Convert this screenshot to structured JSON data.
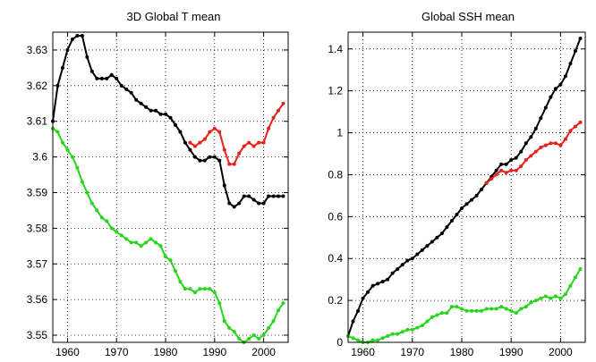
{
  "chart_data": [
    {
      "type": "line",
      "title": "3D Global T mean",
      "xlabel": "",
      "ylabel": "",
      "xlim": [
        1957,
        2005
      ],
      "ylim": [
        3.548,
        3.635
      ],
      "xticks": [
        1960,
        1970,
        1980,
        1990,
        2000
      ],
      "xtick_labels": [
        "1960",
        "1970",
        "1980",
        "1990",
        "2000"
      ],
      "yticks": [
        3.55,
        3.56,
        3.57,
        3.58,
        3.59,
        3.6,
        3.61,
        3.62,
        3.63
      ],
      "ytick_labels": [
        "3.55",
        "3.56",
        "3.57",
        "3.58",
        "3.59",
        "3.6",
        "3.61",
        "3.62",
        "3.63"
      ],
      "grid": true,
      "series": [
        {
          "color": "#000000",
          "x": [
            1957,
            1958,
            1959,
            1960,
            1961,
            1962,
            1963,
            1964,
            1965,
            1966,
            1967,
            1968,
            1969,
            1970,
            1971,
            1972,
            1973,
            1974,
            1975,
            1976,
            1977,
            1978,
            1979,
            1980,
            1981,
            1982,
            1983,
            1984,
            1985,
            1986,
            1987,
            1988,
            1989,
            1990,
            1991,
            1992,
            1993,
            1994,
            1995,
            1996,
            1997,
            1998,
            1999,
            2000,
            2001,
            2002,
            2003,
            2004
          ],
          "values": [
            3.61,
            3.62,
            3.625,
            3.63,
            3.633,
            3.634,
            3.634,
            3.628,
            3.624,
            3.622,
            3.622,
            3.622,
            3.623,
            3.622,
            3.62,
            3.619,
            3.618,
            3.616,
            3.615,
            3.614,
            3.613,
            3.613,
            3.612,
            3.612,
            3.611,
            3.609,
            3.607,
            3.604,
            3.602,
            3.6,
            3.599,
            3.599,
            3.6,
            3.6,
            3.599,
            3.592,
            3.587,
            3.586,
            3.587,
            3.589,
            3.589,
            3.588,
            3.587,
            3.587,
            3.589,
            3.589,
            3.589,
            3.589
          ]
        },
        {
          "color": "#e8201a",
          "x": [
            1985,
            1986,
            1987,
            1988,
            1989,
            1990,
            1991,
            1992,
            1993,
            1994,
            1995,
            1996,
            1997,
            1998,
            1999,
            2000,
            2001,
            2002,
            2003,
            2004
          ],
          "values": [
            3.604,
            3.603,
            3.604,
            3.605,
            3.607,
            3.608,
            3.607,
            3.602,
            3.598,
            3.598,
            3.601,
            3.603,
            3.604,
            3.603,
            3.604,
            3.604,
            3.608,
            3.611,
            3.613,
            3.615
          ]
        },
        {
          "color": "#27d61b",
          "x": [
            1957,
            1958,
            1959,
            1960,
            1961,
            1962,
            1963,
            1964,
            1965,
            1966,
            1967,
            1968,
            1969,
            1970,
            1971,
            1972,
            1973,
            1974,
            1975,
            1976,
            1977,
            1978,
            1979,
            1980,
            1981,
            1982,
            1983,
            1984,
            1985,
            1986,
            1987,
            1988,
            1989,
            1990,
            1991,
            1992,
            1993,
            1994,
            1995,
            1996,
            1997,
            1998,
            1999,
            2000,
            2001,
            2002,
            2003,
            2004
          ],
          "values": [
            3.608,
            3.607,
            3.604,
            3.602,
            3.6,
            3.597,
            3.593,
            3.59,
            3.587,
            3.585,
            3.583,
            3.582,
            3.58,
            3.579,
            3.578,
            3.577,
            3.576,
            3.576,
            3.575,
            3.576,
            3.577,
            3.576,
            3.575,
            3.572,
            3.571,
            3.568,
            3.565,
            3.563,
            3.563,
            3.562,
            3.563,
            3.563,
            3.563,
            3.562,
            3.559,
            3.554,
            3.552,
            3.551,
            3.549,
            3.548,
            3.549,
            3.55,
            3.549,
            3.55,
            3.552,
            3.554,
            3.557,
            3.559
          ]
        }
      ]
    },
    {
      "type": "line",
      "title": "Global SSH mean",
      "xlabel": "",
      "ylabel": "",
      "xlim": [
        1957,
        2005
      ],
      "ylim": [
        0,
        1.48
      ],
      "xticks": [
        1960,
        1970,
        1980,
        1990,
        2000
      ],
      "xtick_labels": [
        "1960",
        "1970",
        "1980",
        "1990",
        "2000"
      ],
      "yticks": [
        0,
        0.2,
        0.4,
        0.6,
        0.8,
        1,
        1.2,
        1.4
      ],
      "ytick_labels": [
        "0",
        "0.2",
        "0.4",
        "0.6",
        "0.8",
        "1",
        "1.2",
        "1.4"
      ],
      "grid": true,
      "series": [
        {
          "color": "#000000",
          "x": [
            1957,
            1958,
            1959,
            1960,
            1961,
            1962,
            1963,
            1964,
            1965,
            1966,
            1967,
            1968,
            1969,
            1970,
            1971,
            1972,
            1973,
            1974,
            1975,
            1976,
            1977,
            1978,
            1979,
            1980,
            1981,
            1982,
            1983,
            1984,
            1985,
            1986,
            1987,
            1988,
            1989,
            1990,
            1991,
            1992,
            1993,
            1994,
            1995,
            1996,
            1997,
            1998,
            1999,
            2000,
            2001,
            2002,
            2003,
            2004
          ],
          "values": [
            0.03,
            0.1,
            0.15,
            0.21,
            0.24,
            0.27,
            0.28,
            0.29,
            0.3,
            0.33,
            0.35,
            0.37,
            0.39,
            0.4,
            0.42,
            0.44,
            0.46,
            0.48,
            0.5,
            0.52,
            0.55,
            0.58,
            0.61,
            0.64,
            0.66,
            0.68,
            0.7,
            0.73,
            0.76,
            0.79,
            0.82,
            0.85,
            0.85,
            0.87,
            0.88,
            0.91,
            0.95,
            0.98,
            1.02,
            1.07,
            1.12,
            1.17,
            1.21,
            1.23,
            1.27,
            1.33,
            1.39,
            1.45
          ]
        },
        {
          "color": "#e8201a",
          "x": [
            1985,
            1986,
            1987,
            1988,
            1989,
            1990,
            1991,
            1992,
            1993,
            1994,
            1995,
            1996,
            1997,
            1998,
            1999,
            2000,
            2001,
            2002,
            2003,
            2004
          ],
          "values": [
            0.76,
            0.78,
            0.8,
            0.82,
            0.81,
            0.82,
            0.82,
            0.84,
            0.87,
            0.89,
            0.91,
            0.93,
            0.94,
            0.95,
            0.95,
            0.94,
            0.97,
            1.01,
            1.03,
            1.05
          ]
        },
        {
          "color": "#27d61b",
          "x": [
            1957,
            1958,
            1959,
            1960,
            1961,
            1962,
            1963,
            1964,
            1965,
            1966,
            1967,
            1968,
            1969,
            1970,
            1971,
            1972,
            1973,
            1974,
            1975,
            1976,
            1977,
            1978,
            1979,
            1980,
            1981,
            1982,
            1983,
            1984,
            1985,
            1986,
            1987,
            1988,
            1989,
            1990,
            1991,
            1992,
            1993,
            1994,
            1995,
            1996,
            1997,
            1998,
            1999,
            2000,
            2001,
            2002,
            2003,
            2004
          ],
          "values": [
            0.03,
            0.02,
            0.01,
            0.0,
            0.0,
            0.01,
            0.01,
            0.02,
            0.03,
            0.04,
            0.04,
            0.05,
            0.06,
            0.06,
            0.07,
            0.08,
            0.1,
            0.12,
            0.13,
            0.14,
            0.14,
            0.17,
            0.17,
            0.16,
            0.15,
            0.15,
            0.15,
            0.15,
            0.16,
            0.16,
            0.16,
            0.17,
            0.16,
            0.15,
            0.14,
            0.16,
            0.17,
            0.19,
            0.2,
            0.21,
            0.22,
            0.21,
            0.22,
            0.21,
            0.23,
            0.27,
            0.31,
            0.35
          ]
        }
      ]
    }
  ]
}
